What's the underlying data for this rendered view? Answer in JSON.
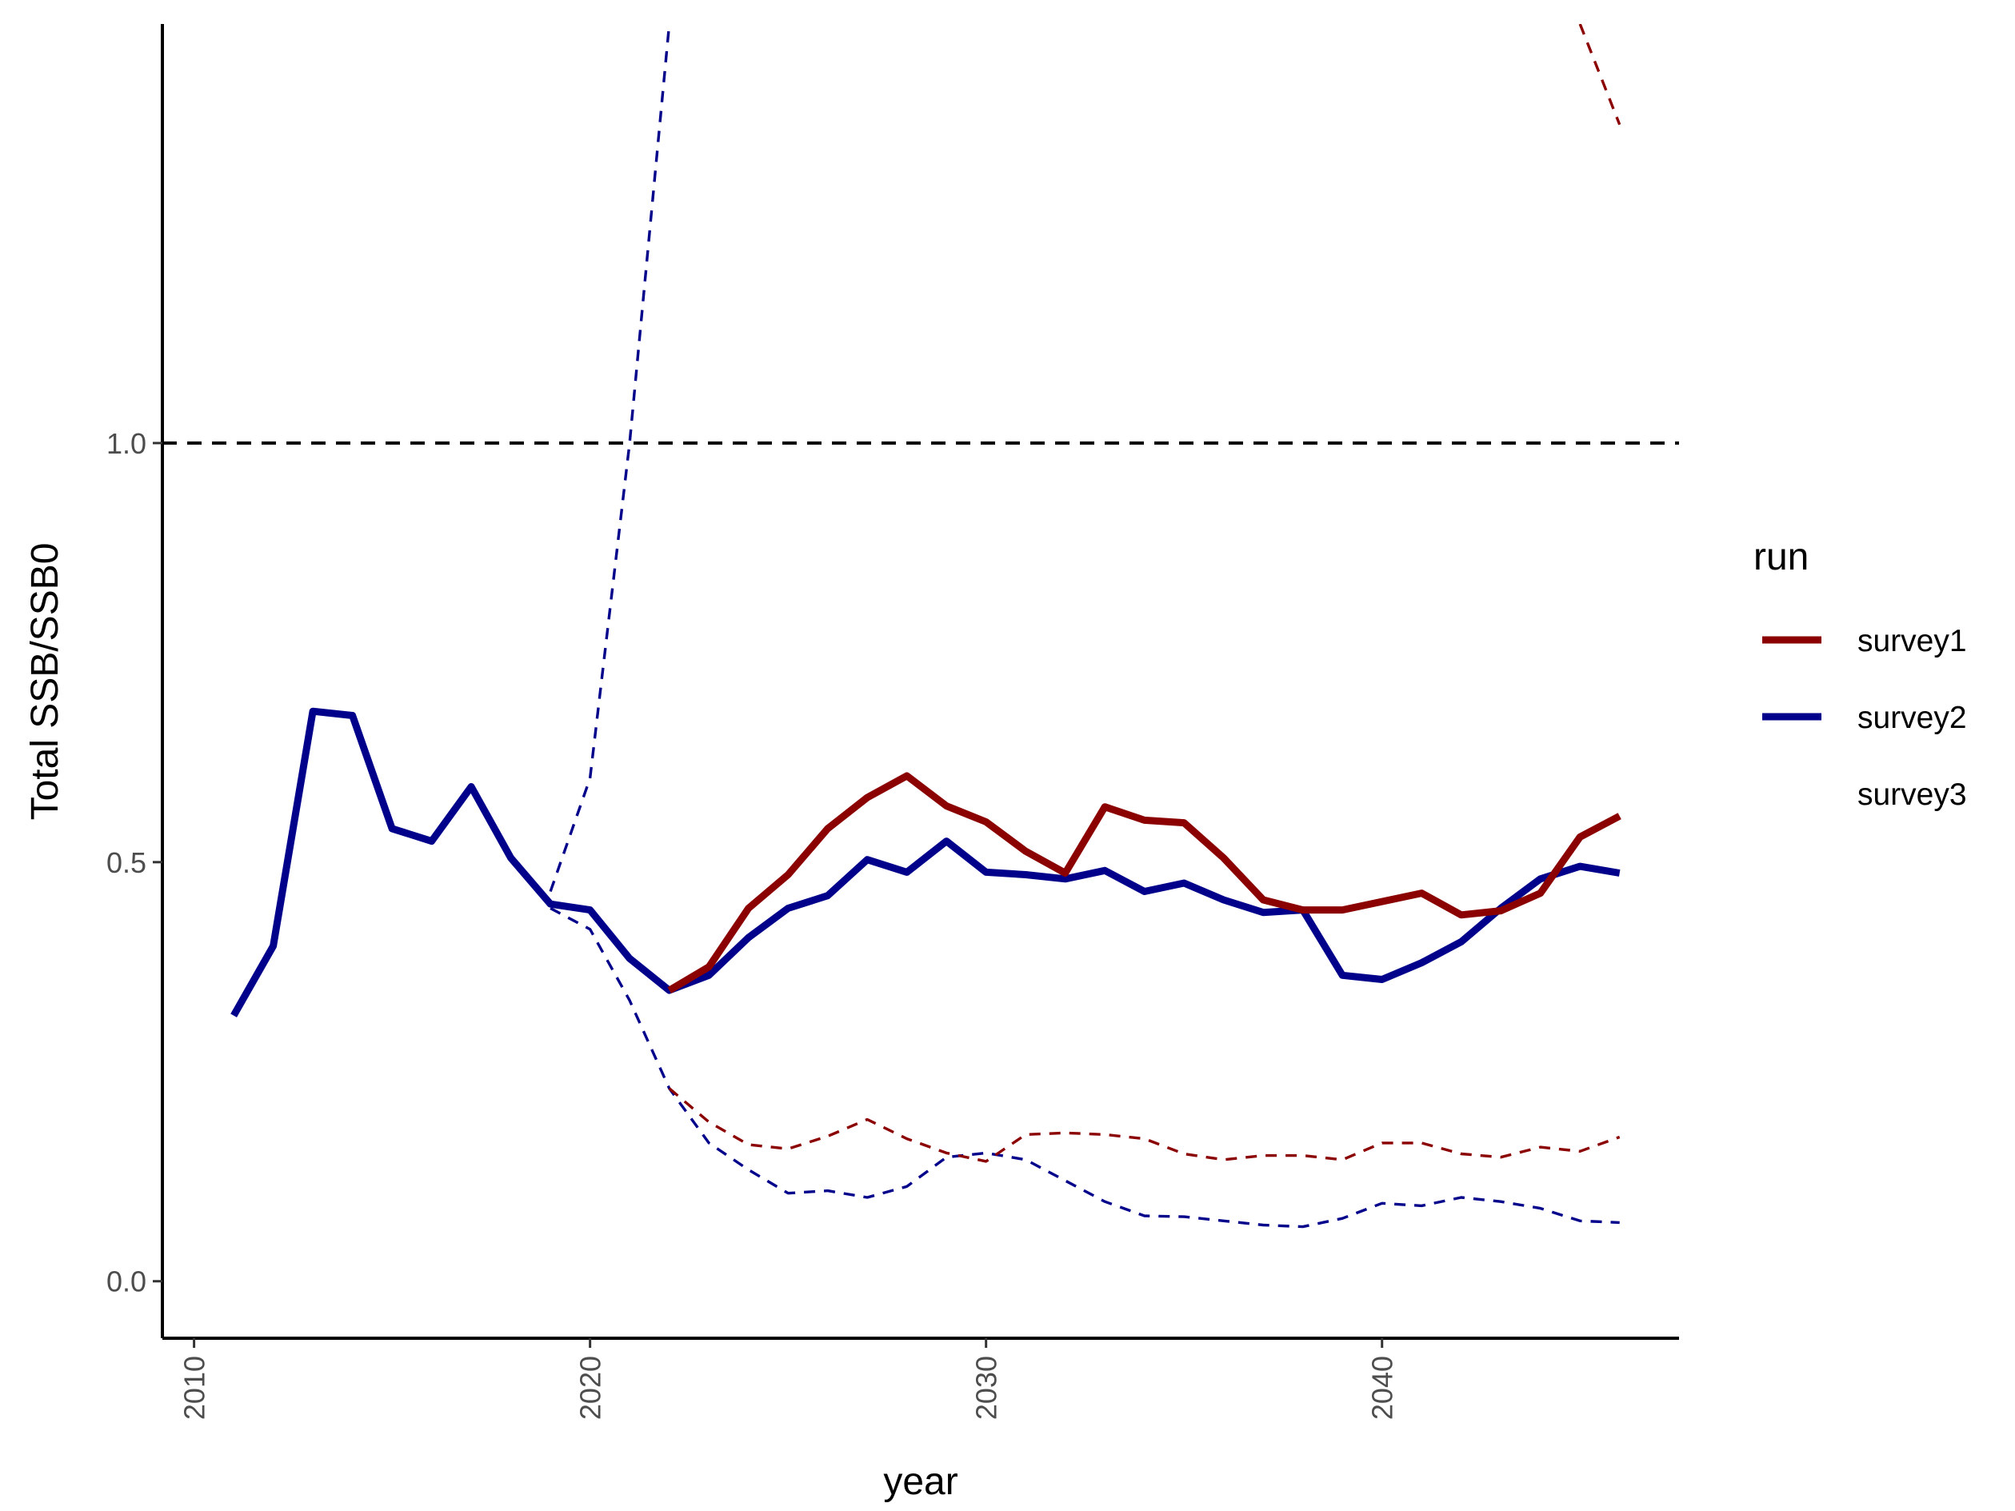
{
  "chart_data": {
    "type": "line",
    "xlabel": "year",
    "ylabel": "Total SSB/SSB0",
    "xlim": [
      2009.2,
      2047.5
    ],
    "ylim": [
      -0.068,
      1.5
    ],
    "x_ticks": [
      2010,
      2020,
      2030,
      2040
    ],
    "x_tick_labels": [
      "2010",
      "2020",
      "2030",
      "2040"
    ],
    "y_ticks": [
      0.0,
      0.5,
      1.0
    ],
    "y_tick_labels": [
      "0.0",
      "0.5",
      "1.0"
    ],
    "reference_line": {
      "y": 1.0,
      "style": "dashed",
      "color": "#000000"
    },
    "grid": false,
    "legend": {
      "title": "run",
      "position": "right",
      "entries": [
        {
          "label": "survey1",
          "color": "#8B0000",
          "shown": true
        },
        {
          "label": "survey2",
          "color": "#00008B",
          "shown": true
        },
        {
          "label": "survey3",
          "color": "#ffffff",
          "shown": false
        }
      ]
    },
    "series": [
      {
        "name": "survey2",
        "color": "#00008B",
        "style": "solid",
        "x": [
          2011,
          2012,
          2013,
          2014,
          2015,
          2016,
          2017,
          2018,
          2019,
          2020,
          2021,
          2022,
          2023,
          2024,
          2025,
          2026,
          2027,
          2028,
          2029,
          2030,
          2031,
          2032,
          2033,
          2034,
          2035,
          2036,
          2037,
          2038,
          2039,
          2040,
          2041,
          2042,
          2043,
          2044,
          2045,
          2046
        ],
        "y": [
          0.317,
          0.4,
          0.68,
          0.675,
          0.54,
          0.525,
          0.59,
          0.505,
          0.45,
          0.443,
          0.385,
          0.347,
          0.365,
          0.41,
          0.445,
          0.46,
          0.503,
          0.488,
          0.525,
          0.488,
          0.485,
          0.48,
          0.49,
          0.465,
          0.475,
          0.455,
          0.44,
          0.443,
          0.365,
          0.36,
          0.38,
          0.405,
          0.445,
          0.48,
          0.495,
          0.487
        ]
      },
      {
        "name": "survey1",
        "color": "#8B0000",
        "style": "solid",
        "x": [
          2022,
          2023,
          2024,
          2025,
          2026,
          2027,
          2028,
          2029,
          2030,
          2031,
          2032,
          2033,
          2034,
          2035,
          2036,
          2037,
          2038,
          2039,
          2040,
          2041,
          2042,
          2043,
          2044,
          2045,
          2046
        ],
        "y": [
          0.347,
          0.375,
          0.445,
          0.485,
          0.54,
          0.577,
          0.603,
          0.567,
          0.548,
          0.513,
          0.487,
          0.566,
          0.55,
          0.547,
          0.505,
          0.455,
          0.443,
          0.443,
          0.453,
          0.463,
          0.437,
          0.442,
          0.463,
          0.53,
          0.555
        ]
      },
      {
        "name": "survey2 upper",
        "color": "#00008B",
        "style": "dashed",
        "x": [
          2019,
          2020,
          2021,
          2022
        ],
        "y": [
          0.465,
          0.6,
          1.0,
          1.5
        ]
      },
      {
        "name": "survey2 lower",
        "color": "#00008B",
        "style": "dashed",
        "x": [
          2019,
          2020,
          2021,
          2022,
          2023,
          2024,
          2025,
          2026,
          2027,
          2028,
          2029,
          2030,
          2031,
          2032,
          2033,
          2034,
          2035,
          2036,
          2037,
          2038,
          2039,
          2040,
          2041,
          2042,
          2043,
          2044,
          2045,
          2046
        ],
        "y": [
          0.445,
          0.42,
          0.335,
          0.23,
          0.165,
          0.133,
          0.105,
          0.108,
          0.1,
          0.113,
          0.148,
          0.153,
          0.145,
          0.12,
          0.095,
          0.078,
          0.077,
          0.072,
          0.067,
          0.065,
          0.075,
          0.093,
          0.09,
          0.1,
          0.095,
          0.087,
          0.072,
          0.07
        ]
      },
      {
        "name": "survey1 upper",
        "color": "#8B0000",
        "style": "dashed",
        "x": [
          2045,
          2046
        ],
        "y": [
          1.5,
          1.38
        ]
      },
      {
        "name": "survey1 lower",
        "color": "#8B0000",
        "style": "dashed",
        "x": [
          2022,
          2023,
          2024,
          2025,
          2026,
          2027,
          2028,
          2029,
          2030,
          2031,
          2032,
          2033,
          2034,
          2035,
          2036,
          2037,
          2038,
          2039,
          2040,
          2041,
          2042,
          2043,
          2044,
          2045,
          2046
        ],
        "y": [
          0.23,
          0.19,
          0.163,
          0.158,
          0.173,
          0.193,
          0.17,
          0.153,
          0.143,
          0.175,
          0.177,
          0.175,
          0.17,
          0.152,
          0.145,
          0.15,
          0.15,
          0.145,
          0.165,
          0.165,
          0.152,
          0.148,
          0.16,
          0.155,
          0.172
        ]
      }
    ]
  }
}
